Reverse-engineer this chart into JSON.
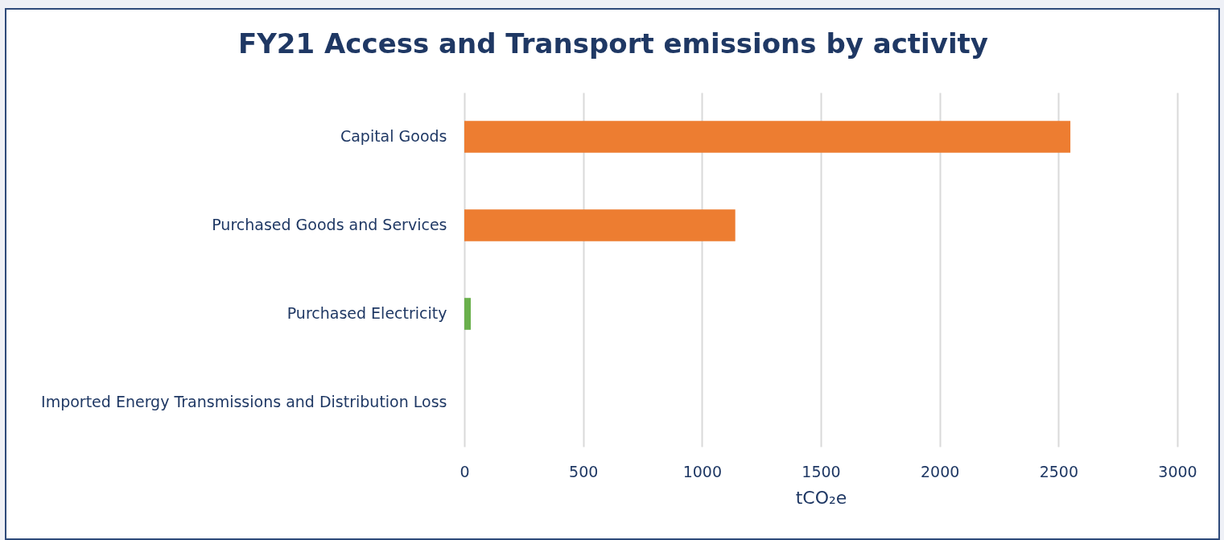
{
  "chart_data": {
    "type": "bar",
    "orientation": "horizontal",
    "title": "FY21 Access and Transport emissions by activity",
    "xlabel": "tCO₂e",
    "categories": [
      "Capital Goods",
      "Purchased Goods and Services",
      "Purchased Electricity",
      "Imported Energy Transmissions and Distribution Loss"
    ],
    "values": [
      2550,
      1140,
      27,
      0
    ],
    "colors": [
      "#ed7d31",
      "#ed7d31",
      "#6ab04c",
      "#6ab04c"
    ],
    "xlim": [
      0,
      3000
    ],
    "xticks": [
      0,
      500,
      1000,
      1500,
      2000,
      2500,
      3000
    ],
    "grid": "x",
    "legend": false
  }
}
